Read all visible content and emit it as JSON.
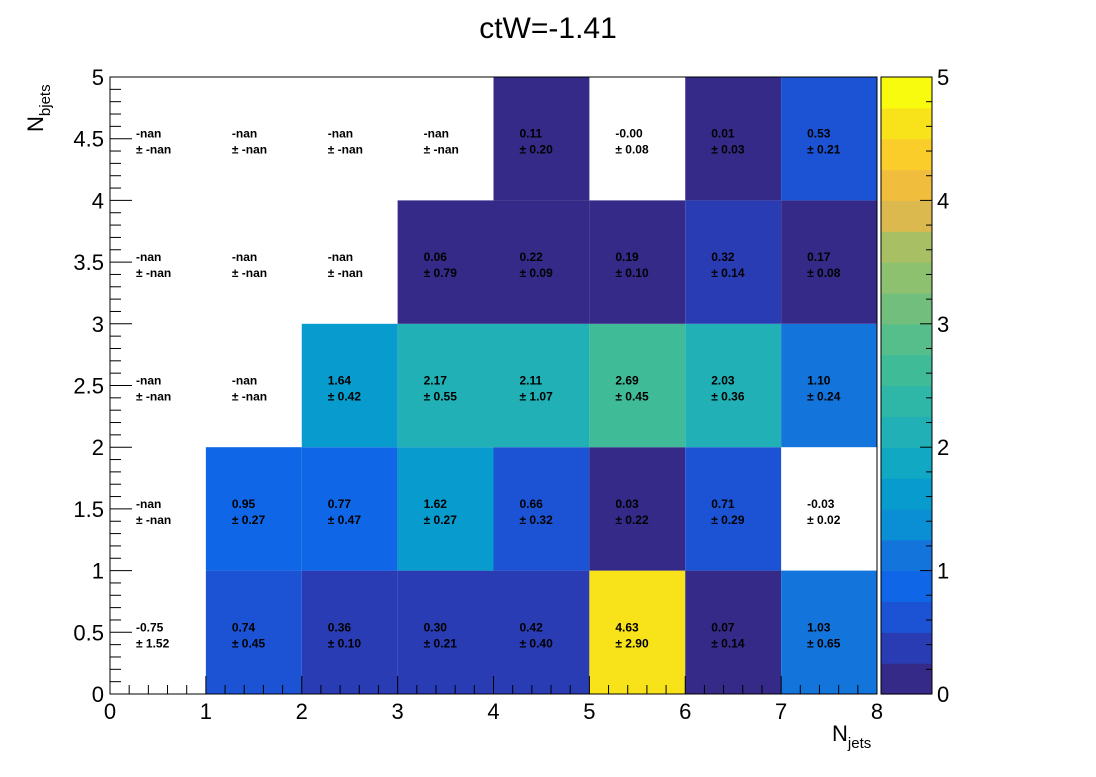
{
  "chart_data": {
    "type": "heatmap",
    "title": "ctW=-1.41",
    "xlabel": {
      "main": "N",
      "sub": "jets"
    },
    "ylabel": {
      "main": "N",
      "sub": "bjets"
    },
    "x_edges": [
      0,
      1,
      2,
      3,
      4,
      5,
      6,
      7,
      8
    ],
    "y_edges": [
      0,
      1,
      2,
      3,
      4,
      5
    ],
    "xlim": [
      0,
      8
    ],
    "ylim": [
      0,
      5
    ],
    "x_ticks": [
      "0",
      "1",
      "2",
      "3",
      "4",
      "5",
      "6",
      "7",
      "8"
    ],
    "y_ticks": [
      "0",
      "0.5",
      "1",
      "1.5",
      "2",
      "2.5",
      "3",
      "3.5",
      "4",
      "4.5",
      "5"
    ],
    "z_range": [
      0,
      5
    ],
    "z_ticks": [
      "0",
      "1",
      "2",
      "3",
      "4",
      "5"
    ],
    "colorbar_levels": 20,
    "palette": [
      "#352a87",
      "#2a3cb3",
      "#1b53d4",
      "#0f66e6",
      "#1374dc",
      "#1581d6",
      "#0b8fd4",
      "#089bce",
      "#11a8c4",
      "#21b0b6",
      "#2eb6a6",
      "#3fbb98",
      "#56be8b",
      "#72bf7d",
      "#8ec16f",
      "#a9bf64",
      "#c3bc5c",
      "#dbb94f",
      "#f1bd3d",
      "#fbcd2a",
      "#f8e21a",
      "#f9fb0e"
    ],
    "cell_text_prefix": "± ",
    "cells": [
      {
        "x": 0,
        "y": 0,
        "value": -0.75,
        "label": "-0.75",
        "error": "1.52"
      },
      {
        "x": 1,
        "y": 0,
        "value": 0.74,
        "label": "0.74",
        "error": "0.45"
      },
      {
        "x": 2,
        "y": 0,
        "value": 0.36,
        "label": "0.36",
        "error": "0.10"
      },
      {
        "x": 3,
        "y": 0,
        "value": 0.3,
        "label": "0.30",
        "error": "0.21"
      },
      {
        "x": 4,
        "y": 0,
        "value": 0.42,
        "label": "0.42",
        "error": "0.40"
      },
      {
        "x": 5,
        "y": 0,
        "value": 4.63,
        "label": "4.63",
        "error": "2.90"
      },
      {
        "x": 6,
        "y": 0,
        "value": 0.07,
        "label": "0.07",
        "error": "0.14"
      },
      {
        "x": 7,
        "y": 0,
        "value": 1.03,
        "label": "1.03",
        "error": "0.65"
      },
      {
        "x": 0,
        "y": 1,
        "value": null,
        "label": "-nan",
        "error": "-nan"
      },
      {
        "x": 1,
        "y": 1,
        "value": 0.95,
        "label": "0.95",
        "error": "0.27"
      },
      {
        "x": 2,
        "y": 1,
        "value": 0.77,
        "label": "0.77",
        "error": "0.47"
      },
      {
        "x": 3,
        "y": 1,
        "value": 1.62,
        "label": "1.62",
        "error": "0.27"
      },
      {
        "x": 4,
        "y": 1,
        "value": 0.66,
        "label": "0.66",
        "error": "0.32"
      },
      {
        "x": 5,
        "y": 1,
        "value": 0.03,
        "label": "0.03",
        "error": "0.22"
      },
      {
        "x": 6,
        "y": 1,
        "value": 0.71,
        "label": "0.71",
        "error": "0.29"
      },
      {
        "x": 7,
        "y": 1,
        "value": -0.03,
        "label": "-0.03",
        "error": "0.02"
      },
      {
        "x": 0,
        "y": 2,
        "value": null,
        "label": "-nan",
        "error": "-nan"
      },
      {
        "x": 1,
        "y": 2,
        "value": null,
        "label": "-nan",
        "error": "-nan"
      },
      {
        "x": 2,
        "y": 2,
        "value": 1.64,
        "label": "1.64",
        "error": "0.42"
      },
      {
        "x": 3,
        "y": 2,
        "value": 2.17,
        "label": "2.17",
        "error": "0.55"
      },
      {
        "x": 4,
        "y": 2,
        "value": 2.11,
        "label": "2.11",
        "error": "1.07"
      },
      {
        "x": 5,
        "y": 2,
        "value": 2.69,
        "label": "2.69",
        "error": "0.45"
      },
      {
        "x": 6,
        "y": 2,
        "value": 2.03,
        "label": "2.03",
        "error": "0.36"
      },
      {
        "x": 7,
        "y": 2,
        "value": 1.1,
        "label": "1.10",
        "error": "0.24"
      },
      {
        "x": 0,
        "y": 3,
        "value": null,
        "label": "-nan",
        "error": "-nan"
      },
      {
        "x": 1,
        "y": 3,
        "value": null,
        "label": "-nan",
        "error": "-nan"
      },
      {
        "x": 2,
        "y": 3,
        "value": null,
        "label": "-nan",
        "error": "-nan"
      },
      {
        "x": 3,
        "y": 3,
        "value": 0.06,
        "label": "0.06",
        "error": "0.79"
      },
      {
        "x": 4,
        "y": 3,
        "value": 0.22,
        "label": "0.22",
        "error": "0.09"
      },
      {
        "x": 5,
        "y": 3,
        "value": 0.19,
        "label": "0.19",
        "error": "0.10"
      },
      {
        "x": 6,
        "y": 3,
        "value": 0.32,
        "label": "0.32",
        "error": "0.14"
      },
      {
        "x": 7,
        "y": 3,
        "value": 0.17,
        "label": "0.17",
        "error": "0.08"
      },
      {
        "x": 0,
        "y": 4,
        "value": null,
        "label": "-nan",
        "error": "-nan"
      },
      {
        "x": 1,
        "y": 4,
        "value": null,
        "label": "-nan",
        "error": "-nan"
      },
      {
        "x": 2,
        "y": 4,
        "value": null,
        "label": "-nan",
        "error": "-nan"
      },
      {
        "x": 3,
        "y": 4,
        "value": null,
        "label": "-nan",
        "error": "-nan"
      },
      {
        "x": 4,
        "y": 4,
        "value": 0.11,
        "label": "0.11",
        "error": "0.20"
      },
      {
        "x": 5,
        "y": 4,
        "value": -0.001,
        "label": "-0.00",
        "error": "0.08"
      },
      {
        "x": 6,
        "y": 4,
        "value": 0.01,
        "label": "0.01",
        "error": "0.03"
      },
      {
        "x": 7,
        "y": 4,
        "value": 0.53,
        "label": "0.53",
        "error": "0.21"
      }
    ]
  }
}
